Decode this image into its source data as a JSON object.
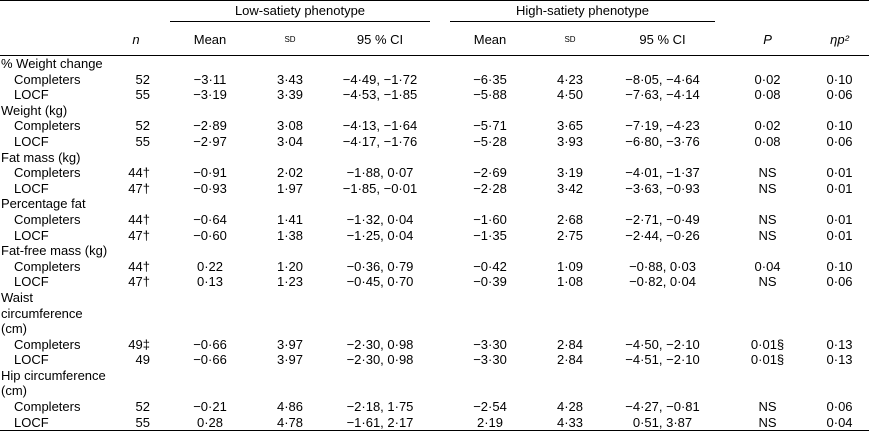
{
  "header": {
    "groups": [
      "Low-satiety phenotype",
      "High-satiety phenotype"
    ],
    "columns": [
      "n",
      "Mean",
      "sd",
      "95 % CI",
      "Mean",
      "sd",
      "95 % CI",
      "P",
      "ηp²"
    ]
  },
  "sections": [
    {
      "title": "% Weight change",
      "rows": [
        {
          "label": "Completers",
          "cells": [
            "52",
            "−3·11",
            "3·43",
            "−4·49, −1·72",
            "−6·35",
            "4·23",
            "−8·05, −4·64",
            "0·02",
            "0·10"
          ]
        },
        {
          "label": "LOCF",
          "cells": [
            "55",
            "−3·19",
            "3·39",
            "−4·53, −1·85",
            "−5·88",
            "4·50",
            "−7·63, −4·14",
            "0·08",
            "0·06"
          ]
        }
      ]
    },
    {
      "title": "Weight (kg)",
      "rows": [
        {
          "label": "Completers",
          "cells": [
            "52",
            "−2·89",
            "3·08",
            "−4·13, −1·64",
            "−5·71",
            "3·65",
            "−7·19, −4·23",
            "0·02",
            "0·10"
          ]
        },
        {
          "label": "LOCF",
          "cells": [
            "55",
            "−2·97",
            "3·04",
            "−4·17, −1·76",
            "−5·28",
            "3·93",
            "−6·80, −3·76",
            "0·08",
            "0·06"
          ]
        }
      ]
    },
    {
      "title": "Fat mass (kg)",
      "rows": [
        {
          "label": "Completers",
          "cells": [
            "44†",
            "−0·91",
            "2·02",
            "−1·88, 0·07",
            "−2·69",
            "3·19",
            "−4·01, −1·37",
            "NS",
            "0·01"
          ]
        },
        {
          "label": "LOCF",
          "cells": [
            "47†",
            "−0·93",
            "1·97",
            "−1·85, −0·01",
            "−2·28",
            "3·42",
            "−3·63, −0·93",
            "NS",
            "0·01"
          ]
        }
      ]
    },
    {
      "title": "Percentage fat",
      "rows": [
        {
          "label": "Completers",
          "cells": [
            "44†",
            "−0·64",
            "1·41",
            "−1·32, 0·04",
            "−1·60",
            "2·68",
            "−2·71, −0·49",
            "NS",
            "0·01"
          ]
        },
        {
          "label": "LOCF",
          "cells": [
            "47†",
            "−0·60",
            "1·38",
            "−1·25, 0·04",
            "−1·35",
            "2·75",
            "−2·44, −0·26",
            "NS",
            "0·01"
          ]
        }
      ]
    },
    {
      "title": "Fat-free mass (kg)",
      "rows": [
        {
          "label": "Completers",
          "cells": [
            "44†",
            "0·22",
            "1·20",
            "−0·36, 0·79",
            "−0·42",
            "1·09",
            "−0·88, 0·03",
            "0·04",
            "0·10"
          ]
        },
        {
          "label": "LOCF",
          "cells": [
            "47†",
            "0·13",
            "1·23",
            "−0·45, 0·70",
            "−0·39",
            "1·08",
            "−0·82, 0·04",
            "NS",
            "0·06"
          ]
        }
      ]
    },
    {
      "title": "Waist circumference (cm)",
      "rows": [
        {
          "label": "Completers",
          "cells": [
            "49‡",
            "−0·66",
            "3·97",
            "−2·30, 0·98",
            "−3·30",
            "2·84",
            "−4·50, −2·10",
            "0·01§",
            "0·13"
          ]
        },
        {
          "label": "LOCF",
          "cells": [
            "49",
            "−0·66",
            "3·97",
            "−2·30, 0·98",
            "−3·30",
            "2·84",
            "−4·51, −2·10",
            "0·01§",
            "0·13"
          ]
        }
      ]
    },
    {
      "title": "Hip circumference (cm)",
      "rows": [
        {
          "label": "Completers",
          "cells": [
            "52",
            "−0·21",
            "4·86",
            "−2·18, 1·75",
            "−2·54",
            "4·28",
            "−4·27, −0·81",
            "NS",
            "0·06"
          ]
        },
        {
          "label": "LOCF",
          "cells": [
            "55",
            "0·28",
            "4·78",
            "−1·61, 2·17",
            "2·19",
            "4·33",
            "0·51, 3·87",
            "NS",
            "0·04"
          ]
        }
      ]
    }
  ]
}
